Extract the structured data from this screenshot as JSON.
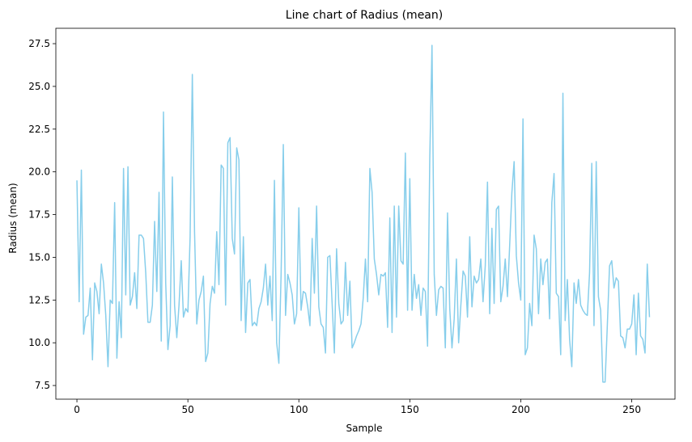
{
  "chart_data": {
    "type": "line",
    "title": "Line chart of Radius (mean)",
    "xlabel": "Sample",
    "ylabel": "Radius (mean)",
    "xlim": [
      -9.5,
      269.5
    ],
    "ylim": [
      6.7,
      28.4
    ],
    "x_ticks": [
      0,
      50,
      100,
      150,
      200,
      250
    ],
    "y_ticks": [
      7.5,
      10.0,
      12.5,
      15.0,
      17.5,
      20.0,
      22.5,
      25.0,
      27.5
    ],
    "x_tick_labels": [
      "0",
      "50",
      "100",
      "150",
      "200",
      "250"
    ],
    "y_tick_labels": [
      "7.5",
      "10.0",
      "12.5",
      "15.0",
      "17.5",
      "20.0",
      "22.5",
      "25.0",
      "27.5"
    ],
    "grid": false,
    "legend": "none",
    "series": [
      {
        "color": "#87ceeb",
        "x_start": 0,
        "values": [
          19.5,
          12.4,
          20.1,
          10.5,
          11.5,
          11.6,
          13.2,
          9.0,
          13.5,
          13.0,
          11.7,
          14.6,
          13.5,
          11.6,
          8.6,
          12.5,
          12.3,
          18.2,
          9.1,
          12.4,
          10.3,
          20.2,
          12.8,
          20.3,
          12.2,
          12.7,
          14.1,
          12.0,
          16.3,
          16.3,
          16.1,
          14.1,
          11.2,
          11.2,
          12.2,
          17.1,
          13.0,
          18.8,
          10.1,
          23.5,
          13.5,
          9.6,
          11.0,
          19.7,
          12.2,
          10.3,
          12.2,
          14.8,
          11.5,
          12.0,
          11.8,
          16.2,
          25.7,
          16.5,
          11.1,
          12.5,
          13.0,
          13.9,
          8.9,
          9.4,
          12.3,
          13.3,
          12.9,
          16.5,
          13.4,
          20.4,
          20.2,
          12.2,
          21.7,
          22.0,
          16.1,
          15.2,
          21.4,
          20.7,
          11.3,
          16.2,
          10.6,
          13.5,
          13.7,
          11.0,
          11.2,
          11.0,
          12.0,
          12.4,
          13.2,
          14.6,
          12.2,
          13.9,
          11.3,
          19.5,
          10.0,
          8.8,
          14.0,
          21.6,
          11.6,
          14.0,
          13.5,
          12.8,
          11.1,
          11.7,
          17.9,
          11.9,
          13.0,
          12.9,
          12.1,
          11.0,
          16.1,
          12.9,
          18.0,
          12.1,
          11.1,
          10.9,
          9.4,
          15.0,
          15.1,
          12.3,
          9.4,
          15.5,
          12.3,
          11.1,
          11.3,
          14.7,
          11.6,
          13.6,
          9.7,
          10.0,
          10.4,
          10.7,
          11.1,
          12.6,
          14.9,
          12.4,
          20.2,
          18.8,
          14.9,
          14.0,
          12.8,
          14.0,
          13.9,
          14.1,
          10.9,
          17.3,
          10.6,
          18.0,
          11.5,
          18.0,
          14.8,
          14.6,
          21.1,
          11.9,
          19.6,
          11.9,
          14.0,
          12.6,
          13.4,
          11.6,
          13.2,
          13.0,
          9.8,
          20.8,
          27.4,
          14.0,
          11.6,
          13.1,
          13.3,
          13.2,
          9.7,
          17.6,
          12.0,
          9.7,
          11.4,
          14.9,
          10.0,
          12.2,
          14.2,
          13.9,
          11.5,
          16.2,
          12.1,
          13.9,
          13.5,
          13.7,
          14.9,
          12.4,
          14.5,
          19.4,
          11.7,
          16.7,
          12.3,
          17.8,
          18.0,
          12.4,
          13.3,
          14.9,
          12.7,
          15.7,
          18.8,
          20.6,
          15.1,
          13.5,
          12.5,
          23.1,
          9.3,
          9.7,
          12.3,
          11.0,
          16.3,
          15.5,
          11.7,
          14.9,
          13.4,
          14.7,
          14.9,
          11.4,
          18.2,
          19.9,
          12.9,
          12.7,
          9.3,
          24.6,
          11.3,
          13.7,
          10.2,
          8.6,
          13.5,
          12.3,
          13.7,
          12.2,
          11.9,
          11.7,
          11.6,
          14.1,
          20.5,
          11.0,
          20.6,
          12.7,
          11.9,
          7.7,
          7.7,
          11.0,
          14.5,
          14.8,
          13.2,
          13.8,
          13.6,
          10.4,
          10.3,
          9.7,
          10.8,
          10.8,
          11.1,
          12.8,
          9.3,
          12.9,
          10.4,
          10.2,
          9.4,
          14.6,
          11.5
        ]
      }
    ]
  }
}
